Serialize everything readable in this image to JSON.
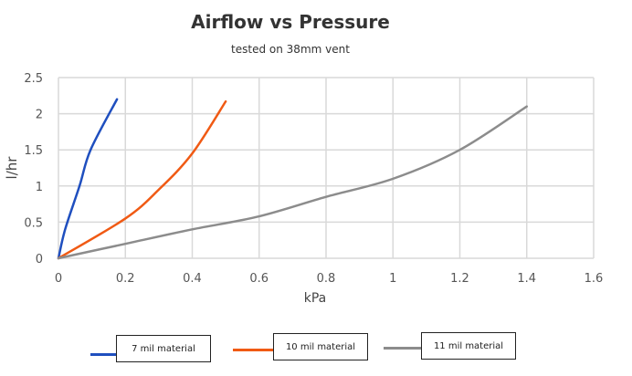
{
  "chart_data": {
    "type": "line",
    "title": "Airflow vs Pressure",
    "subtitle": "tested on 38mm vent",
    "xlabel": "kPa",
    "ylabel": "l/hr",
    "xlim": [
      0,
      1.6
    ],
    "ylim": [
      0,
      2.5
    ],
    "xticks": [
      "0",
      "0.2",
      "0.4",
      "0.6",
      "0.8",
      "1",
      "1.2",
      "1.4",
      "1.6"
    ],
    "yticks": [
      "0",
      "0.5",
      "1",
      "1.5",
      "2",
      "2.5"
    ],
    "grid": true,
    "legend_placement": "bottom",
    "series": [
      {
        "name": "7 mil material",
        "color": "#1f4fbf",
        "x": [
          0,
          0.02,
          0.063,
          0.096,
          0.175
        ],
        "y": [
          0,
          0.4,
          1.0,
          1.5,
          2.2
        ]
      },
      {
        "name": "10 mil material",
        "color": "#f05a14",
        "x": [
          0,
          0.2,
          0.3,
          0.4,
          0.5
        ],
        "y": [
          0,
          0.55,
          0.95,
          1.45,
          2.17
        ]
      },
      {
        "name": "11 mil material",
        "color": "#8c8c8c",
        "x": [
          0,
          0.2,
          0.4,
          0.6,
          0.8,
          1.0,
          1.2,
          1.4
        ],
        "y": [
          0,
          0.2,
          0.4,
          0.58,
          0.85,
          1.1,
          1.5,
          2.1
        ]
      }
    ]
  }
}
